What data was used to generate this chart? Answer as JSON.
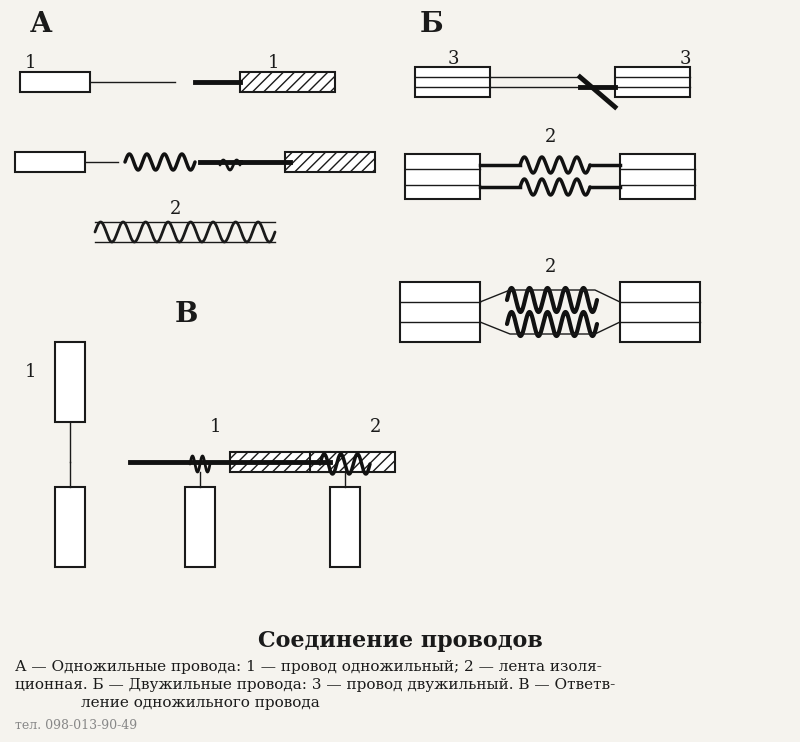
{
  "title": "Соединение проводов",
  "caption_line1": "А — Одножильные провода: 1 — провод одножильный; 2 — лента изоля-",
  "caption_line2": "ционная. Б — Двужильные провода: 3 — провод двужильный. В — Ответв-",
  "caption_line3": "ление одножильного провода",
  "phone": "тел. 098-013-90-49",
  "bg_color": "#f5f3ee",
  "line_color": "#1a1a1a",
  "label_A": "А",
  "label_B_cyr": "Б",
  "label_V": "В",
  "label_1": "1",
  "label_2": "2",
  "label_3": "3"
}
